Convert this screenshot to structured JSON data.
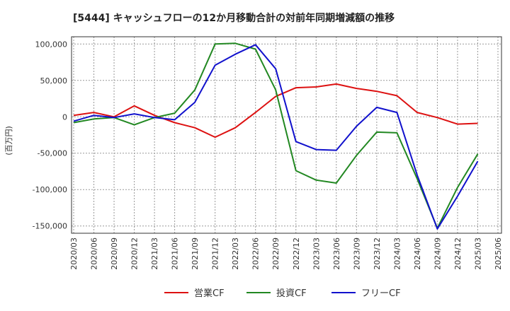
{
  "chart_data": {
    "type": "line",
    "title": "[5444]  キャッシュフローの12か月移動合計の対前年同期増減額の推移",
    "ylabel": "(百万円)",
    "xlabel": "",
    "ylim": [
      -160000,
      110000
    ],
    "yticks": [
      100000,
      50000,
      0,
      -50000,
      -100000,
      -150000
    ],
    "ytick_labels": [
      "100,000",
      "50,000",
      "0",
      "-50,000",
      "-100,000",
      "-150,000"
    ],
    "grid": true,
    "legend_position": "bottom-center",
    "categories": [
      "2020/03",
      "2020/06",
      "2020/09",
      "2020/12",
      "2021/03",
      "2021/06",
      "2021/09",
      "2021/12",
      "2022/03",
      "2022/06",
      "2022/09",
      "2022/12",
      "2023/03",
      "2023/06",
      "2023/09",
      "2023/12",
      "2024/03",
      "2024/06",
      "2024/09",
      "2024/12",
      "2025/03",
      "2025/06"
    ],
    "series": [
      {
        "name": "営業CF",
        "color": "#dd1111",
        "values": [
          2000,
          6000,
          0,
          15000,
          2000,
          -8000,
          -15000,
          -28000,
          -15000,
          6000,
          28000,
          40000,
          41000,
          45000,
          39000,
          35000,
          29000,
          6000,
          -1000,
          -10000,
          -9000,
          null
        ]
      },
      {
        "name": "投資CF",
        "color": "#228822",
        "values": [
          -8000,
          -3000,
          -1000,
          -11000,
          -1000,
          5000,
          37000,
          100000,
          101000,
          93000,
          37000,
          -74000,
          -87000,
          -91000,
          -53000,
          -21000,
          -22000,
          -85000,
          -153000,
          -97000,
          -51000,
          null
        ]
      },
      {
        "name": "フリーCF",
        "color": "#1111cc",
        "values": [
          -6000,
          2000,
          -1000,
          4000,
          -1000,
          -4000,
          20000,
          71000,
          86000,
          99000,
          66000,
          -34000,
          -45000,
          -46000,
          -13000,
          13000,
          6000,
          -80000,
          -154000,
          -109000,
          -61000,
          null
        ]
      }
    ]
  }
}
